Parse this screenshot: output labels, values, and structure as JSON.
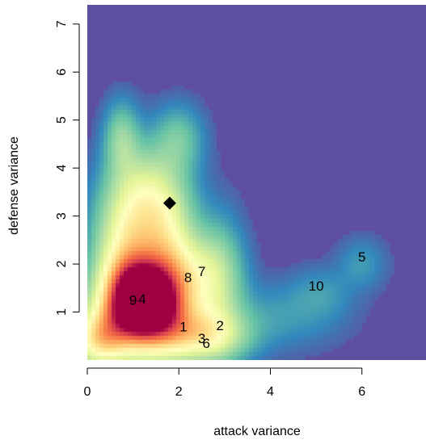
{
  "chart_data": {
    "type": "heatmap",
    "title": "",
    "xlabel": "attack variance",
    "ylabel": "defense variance",
    "xlim": [
      0,
      7.4
    ],
    "ylim": [
      0,
      7.4
    ],
    "x_ticks": [
      0,
      2,
      4,
      6
    ],
    "y_ticks": [
      1,
      2,
      3,
      4,
      5,
      6,
      7
    ],
    "colormap": "Spectral (blue = low density, red = high density)",
    "colors": {
      "background_low": "#5e4fa2",
      "mid": "#ffffbf",
      "high": "#9e0142"
    },
    "density_peak": {
      "x": 1.2,
      "y": 1.3
    },
    "labeled_points": [
      {
        "label": "1",
        "x": 2.1,
        "y": 0.7
      },
      {
        "label": "2",
        "x": 2.9,
        "y": 0.72
      },
      {
        "label": "3",
        "x": 2.5,
        "y": 0.45
      },
      {
        "label": "4",
        "x": 1.2,
        "y": 1.28
      },
      {
        "label": "5",
        "x": 6.0,
        "y": 2.15
      },
      {
        "label": "6",
        "x": 2.6,
        "y": 0.35
      },
      {
        "label": "7",
        "x": 2.5,
        "y": 1.85
      },
      {
        "label": "8",
        "x": 2.2,
        "y": 1.72
      },
      {
        "label": "9",
        "x": 1.0,
        "y": 1.25
      },
      {
        "label": "10",
        "x": 5.0,
        "y": 1.55
      }
    ],
    "marker": {
      "shape": "diamond",
      "x": 1.8,
      "y": 3.27
    }
  }
}
